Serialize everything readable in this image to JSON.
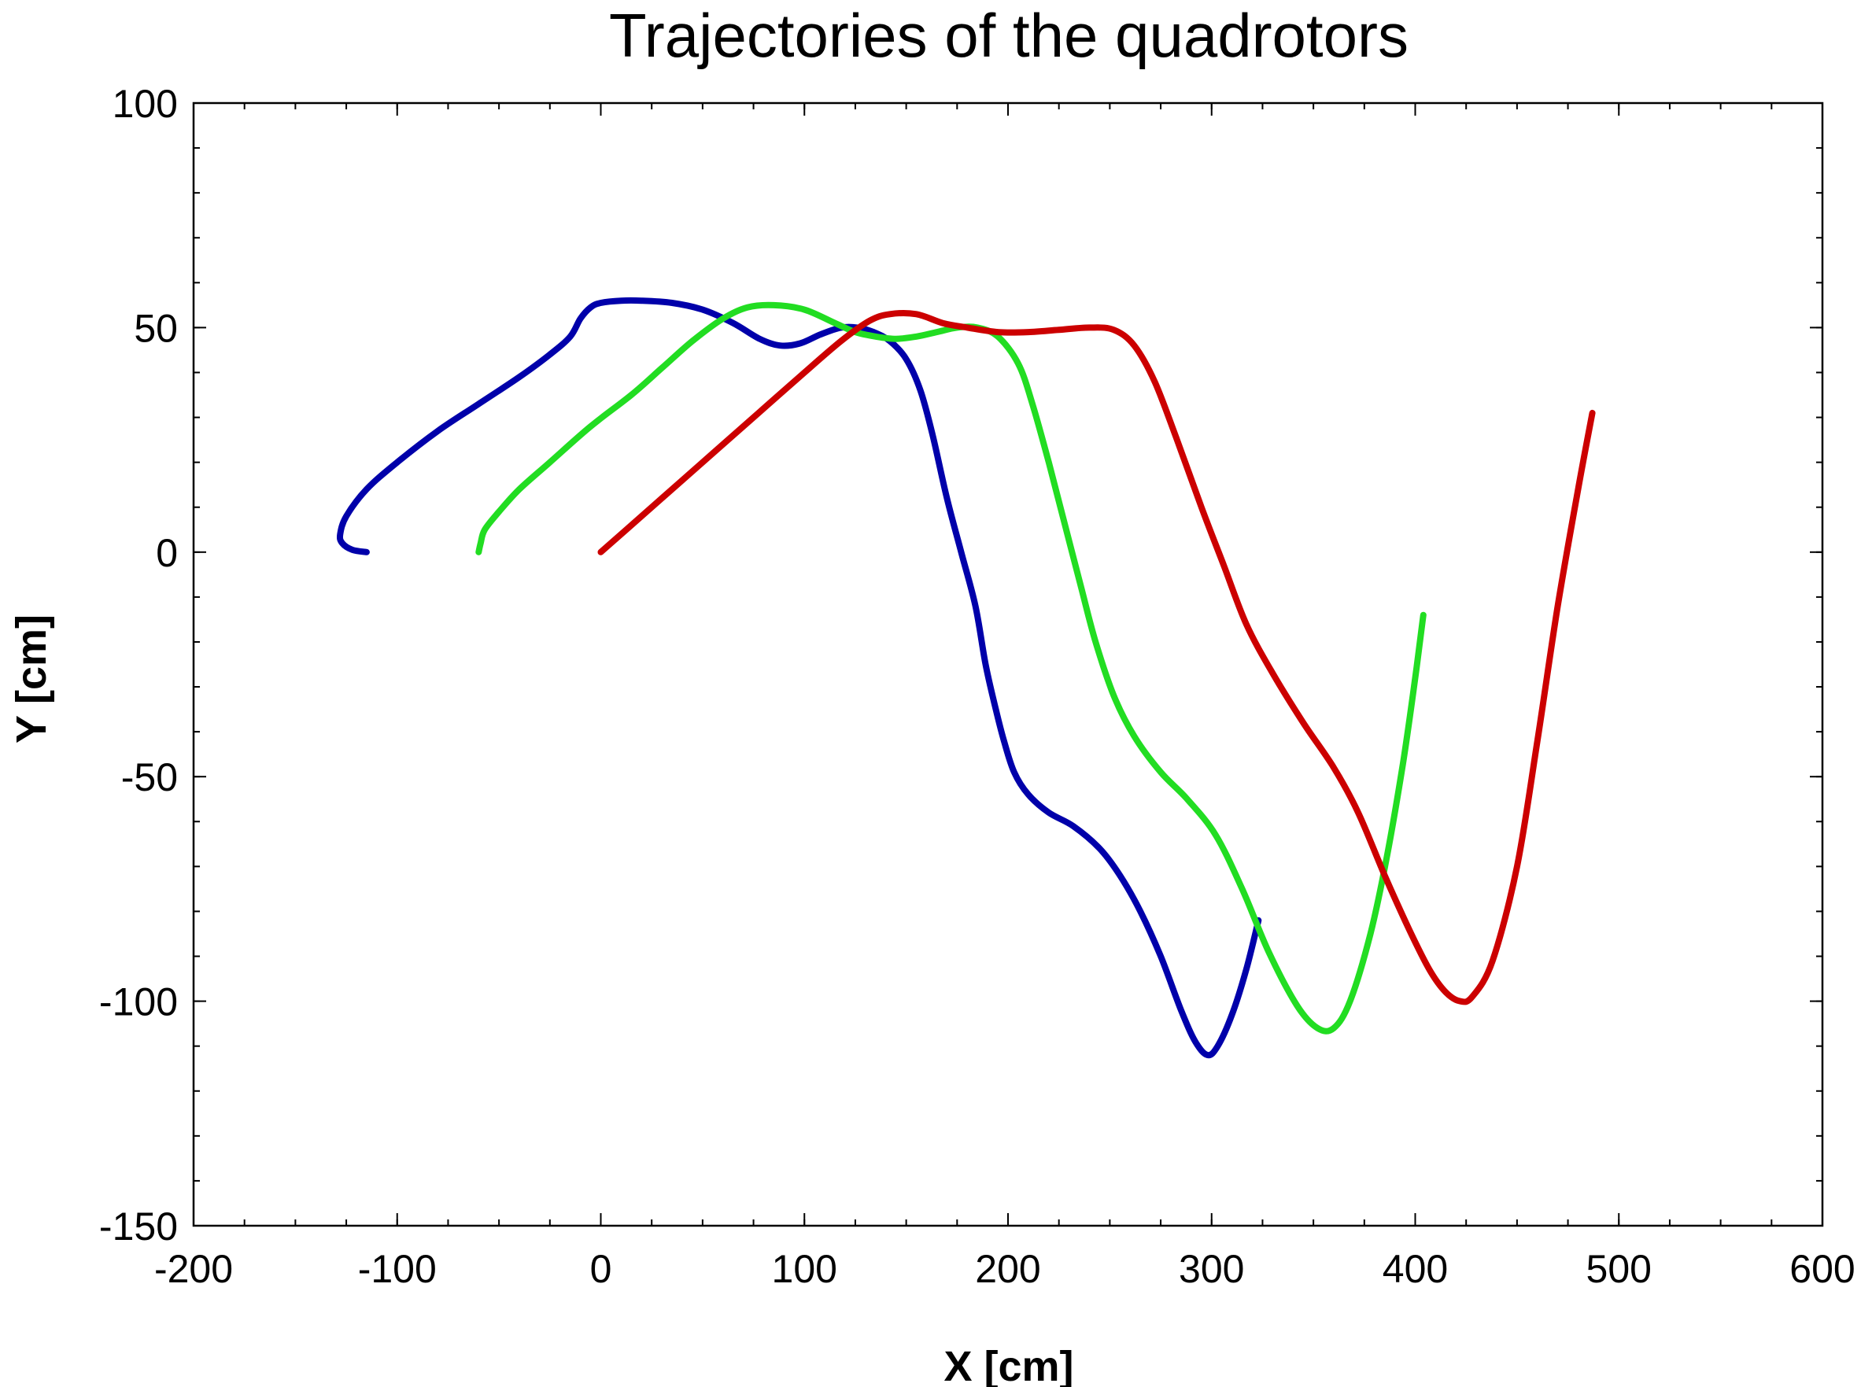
{
  "chart_data": {
    "type": "line",
    "title": "Trajectories of the quadrotors",
    "xlabel": "X [cm]",
    "ylabel": "Y [cm]",
    "xlim": [
      -200,
      600
    ],
    "ylim": [
      -150,
      100
    ],
    "xticks": [
      -200,
      -100,
      0,
      100,
      200,
      300,
      400,
      500,
      600
    ],
    "yticks": [
      -150,
      -100,
      -50,
      0,
      50,
      100
    ],
    "xtick_labels": [
      "-200",
      "-100",
      "0",
      "100",
      "200",
      "300",
      "400",
      "500",
      "600"
    ],
    "ytick_labels": [
      "-150",
      "-100",
      "-50",
      "0",
      "50",
      "100"
    ],
    "x_minor_step": 25,
    "y_minor_step": 10,
    "grid": false,
    "legend": false,
    "series": [
      {
        "color": "#0000aa",
        "points": [
          [
            -115,
            0
          ],
          [
            -122,
            0.5
          ],
          [
            -127,
            2
          ],
          [
            -128,
            4
          ],
          [
            -125,
            8
          ],
          [
            -115,
            14
          ],
          [
            -100,
            20
          ],
          [
            -80,
            27
          ],
          [
            -60,
            33
          ],
          [
            -40,
            39
          ],
          [
            -25,
            44
          ],
          [
            -15,
            48
          ],
          [
            -10,
            52
          ],
          [
            -5,
            54.5
          ],
          [
            0,
            55.5
          ],
          [
            10,
            56
          ],
          [
            20,
            56
          ],
          [
            35,
            55.5
          ],
          [
            50,
            54
          ],
          [
            65,
            51
          ],
          [
            78,
            47.5
          ],
          [
            88,
            46
          ],
          [
            98,
            46.5
          ],
          [
            108,
            48.5
          ],
          [
            118,
            50
          ],
          [
            126,
            50
          ],
          [
            134,
            49
          ],
          [
            142,
            47
          ],
          [
            150,
            43
          ],
          [
            157,
            36
          ],
          [
            163,
            26
          ],
          [
            170,
            12
          ],
          [
            177,
            0
          ],
          [
            184,
            -12
          ],
          [
            189,
            -25
          ],
          [
            194,
            -35
          ],
          [
            198,
            -42
          ],
          [
            203,
            -49
          ],
          [
            210,
            -54
          ],
          [
            220,
            -58
          ],
          [
            232,
            -61
          ],
          [
            245,
            -66
          ],
          [
            255,
            -72
          ],
          [
            265,
            -80
          ],
          [
            275,
            -90
          ],
          [
            285,
            -102
          ],
          [
            292,
            -109
          ],
          [
            298,
            -112
          ],
          [
            303,
            -110
          ],
          [
            310,
            -103
          ],
          [
            317,
            -93
          ],
          [
            323,
            -82
          ]
        ]
      },
      {
        "color": "#22dd22",
        "points": [
          [
            -60,
            0
          ],
          [
            -59,
            2
          ],
          [
            -57,
            5
          ],
          [
            -50,
            9
          ],
          [
            -40,
            14
          ],
          [
            -25,
            20
          ],
          [
            -5,
            28
          ],
          [
            15,
            35
          ],
          [
            30,
            41
          ],
          [
            45,
            47
          ],
          [
            60,
            52
          ],
          [
            72,
            54.5
          ],
          [
            85,
            55
          ],
          [
            100,
            54
          ],
          [
            115,
            51
          ],
          [
            125,
            49
          ],
          [
            135,
            48
          ],
          [
            145,
            47.5
          ],
          [
            155,
            48
          ],
          [
            165,
            49
          ],
          [
            175,
            50
          ],
          [
            185,
            50
          ],
          [
            195,
            48
          ],
          [
            205,
            42
          ],
          [
            212,
            33
          ],
          [
            220,
            20
          ],
          [
            228,
            6
          ],
          [
            236,
            -8
          ],
          [
            243,
            -20
          ],
          [
            252,
            -32
          ],
          [
            262,
            -41
          ],
          [
            275,
            -49
          ],
          [
            288,
            -55
          ],
          [
            302,
            -63
          ],
          [
            315,
            -75
          ],
          [
            328,
            -89
          ],
          [
            342,
            -101
          ],
          [
            352,
            -106
          ],
          [
            360,
            -106
          ],
          [
            368,
            -100
          ],
          [
            378,
            -85
          ],
          [
            386,
            -68
          ],
          [
            394,
            -47
          ],
          [
            400,
            -28
          ],
          [
            404,
            -14
          ]
        ]
      },
      {
        "color": "#cc0000",
        "points": [
          [
            0,
            0
          ],
          [
            20,
            8
          ],
          [
            40,
            16
          ],
          [
            60,
            24
          ],
          [
            80,
            32
          ],
          [
            100,
            40
          ],
          [
            118,
            47
          ],
          [
            132,
            51.5
          ],
          [
            142,
            53
          ],
          [
            155,
            53
          ],
          [
            168,
            51
          ],
          [
            180,
            50
          ],
          [
            195,
            49
          ],
          [
            210,
            49
          ],
          [
            225,
            49.5
          ],
          [
            240,
            50
          ],
          [
            252,
            49.5
          ],
          [
            262,
            46
          ],
          [
            272,
            38
          ],
          [
            283,
            25
          ],
          [
            295,
            10
          ],
          [
            306,
            -3
          ],
          [
            317,
            -16
          ],
          [
            330,
            -27
          ],
          [
            345,
            -38
          ],
          [
            360,
            -48
          ],
          [
            372,
            -58
          ],
          [
            385,
            -72
          ],
          [
            397,
            -84
          ],
          [
            407,
            -93
          ],
          [
            415,
            -98
          ],
          [
            422,
            -100
          ],
          [
            428,
            -99
          ],
          [
            438,
            -91
          ],
          [
            450,
            -70
          ],
          [
            460,
            -42
          ],
          [
            470,
            -12
          ],
          [
            480,
            14
          ],
          [
            487,
            31
          ]
        ]
      }
    ]
  }
}
